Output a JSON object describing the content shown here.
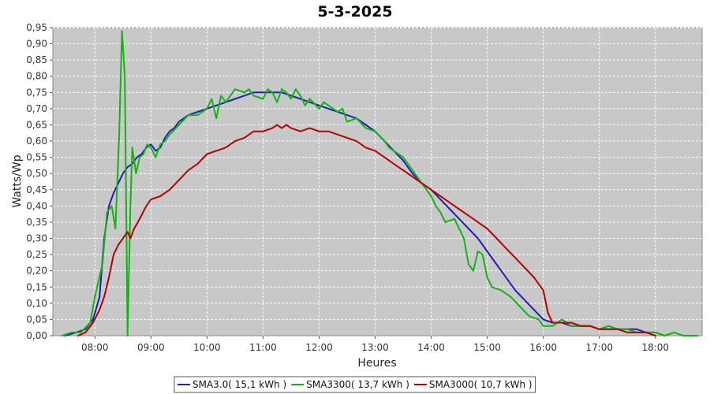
{
  "chart_data": {
    "type": "line",
    "title": "5-3-2025",
    "xlabel": "Heures",
    "ylabel": "Watts/Wp",
    "xlim": [
      "07:15",
      "18:50"
    ],
    "ylim": [
      0,
      0.95
    ],
    "x_ticks": [
      "08:00",
      "09:00",
      "10:00",
      "11:00",
      "12:00",
      "13:00",
      "14:00",
      "15:00",
      "16:00",
      "17:00",
      "18:00"
    ],
    "y_ticks": [
      "0,00",
      "0,05",
      "0,10",
      "0,15",
      "0,20",
      "0,25",
      "0,30",
      "0,35",
      "0,40",
      "0,45",
      "0,50",
      "0,55",
      "0,60",
      "0,65",
      "0,70",
      "0,75",
      "0,80",
      "0,85",
      "0,90",
      "0,95"
    ],
    "grid": true,
    "legend_position": "bottom",
    "background": "#c8c8c8",
    "series": [
      {
        "name": "SMA3.0( 15,1 kWh )",
        "color": "#1f1fb4",
        "points": [
          [
            "07:28",
            0.0
          ],
          [
            "07:40",
            0.01
          ],
          [
            "07:50",
            0.02
          ],
          [
            "07:58",
            0.05
          ],
          [
            "08:05",
            0.12
          ],
          [
            "08:10",
            0.3
          ],
          [
            "08:15",
            0.4
          ],
          [
            "08:20",
            0.44
          ],
          [
            "08:25",
            0.47
          ],
          [
            "08:30",
            0.5
          ],
          [
            "08:35",
            0.52
          ],
          [
            "08:40",
            0.53
          ],
          [
            "08:45",
            0.55
          ],
          [
            "08:50",
            0.56
          ],
          [
            "08:55",
            0.58
          ],
          [
            "09:00",
            0.59
          ],
          [
            "09:05",
            0.57
          ],
          [
            "09:10",
            0.58
          ],
          [
            "09:15",
            0.61
          ],
          [
            "09:20",
            0.63
          ],
          [
            "09:25",
            0.64
          ],
          [
            "09:30",
            0.66
          ],
          [
            "09:40",
            0.68
          ],
          [
            "09:50",
            0.69
          ],
          [
            "10:00",
            0.7
          ],
          [
            "10:10",
            0.71
          ],
          [
            "10:20",
            0.72
          ],
          [
            "10:30",
            0.73
          ],
          [
            "10:40",
            0.74
          ],
          [
            "10:50",
            0.75
          ],
          [
            "11:00",
            0.75
          ],
          [
            "11:10",
            0.75
          ],
          [
            "11:20",
            0.75
          ],
          [
            "11:30",
            0.74
          ],
          [
            "11:40",
            0.73
          ],
          [
            "11:50",
            0.72
          ],
          [
            "12:00",
            0.71
          ],
          [
            "12:10",
            0.7
          ],
          [
            "12:20",
            0.69
          ],
          [
            "12:30",
            0.68
          ],
          [
            "12:40",
            0.67
          ],
          [
            "12:50",
            0.65
          ],
          [
            "13:00",
            0.63
          ],
          [
            "13:10",
            0.6
          ],
          [
            "13:20",
            0.57
          ],
          [
            "13:30",
            0.54
          ],
          [
            "13:40",
            0.5
          ],
          [
            "13:50",
            0.47
          ],
          [
            "14:00",
            0.45
          ],
          [
            "14:10",
            0.42
          ],
          [
            "14:20",
            0.39
          ],
          [
            "14:30",
            0.36
          ],
          [
            "14:40",
            0.33
          ],
          [
            "14:50",
            0.3
          ],
          [
            "15:00",
            0.26
          ],
          [
            "15:10",
            0.22
          ],
          [
            "15:20",
            0.18
          ],
          [
            "15:30",
            0.14
          ],
          [
            "15:40",
            0.11
          ],
          [
            "15:50",
            0.08
          ],
          [
            "16:00",
            0.05
          ],
          [
            "16:10",
            0.04
          ],
          [
            "16:20",
            0.04
          ],
          [
            "16:30",
            0.03
          ],
          [
            "16:40",
            0.03
          ],
          [
            "16:50",
            0.03
          ],
          [
            "17:00",
            0.02
          ],
          [
            "17:20",
            0.02
          ],
          [
            "17:40",
            0.02
          ],
          [
            "17:50",
            0.01
          ],
          [
            "18:00",
            0.01
          ],
          [
            "18:10",
            0.0
          ]
        ]
      },
      {
        "name": "SMA3300( 13,7 kWh )",
        "color": "#12b412",
        "points": [
          [
            "07:25",
            0.0
          ],
          [
            "07:35",
            0.01
          ],
          [
            "07:45",
            0.01
          ],
          [
            "07:55",
            0.04
          ],
          [
            "08:00",
            0.12
          ],
          [
            "08:08",
            0.22
          ],
          [
            "08:13",
            0.38
          ],
          [
            "08:18",
            0.4
          ],
          [
            "08:22",
            0.33
          ],
          [
            "08:26",
            0.62
          ],
          [
            "08:29",
            0.94
          ],
          [
            "08:32",
            0.8
          ],
          [
            "08:35",
            0.0
          ],
          [
            "08:38",
            0.4
          ],
          [
            "08:40",
            0.58
          ],
          [
            "08:44",
            0.5
          ],
          [
            "08:48",
            0.55
          ],
          [
            "08:52",
            0.56
          ],
          [
            "08:56",
            0.59
          ],
          [
            "09:00",
            0.58
          ],
          [
            "09:05",
            0.55
          ],
          [
            "09:10",
            0.59
          ],
          [
            "09:15",
            0.6
          ],
          [
            "09:20",
            0.62
          ],
          [
            "09:30",
            0.65
          ],
          [
            "09:40",
            0.68
          ],
          [
            "09:50",
            0.68
          ],
          [
            "10:00",
            0.7
          ],
          [
            "10:05",
            0.73
          ],
          [
            "10:10",
            0.67
          ],
          [
            "10:15",
            0.74
          ],
          [
            "10:20",
            0.72
          ],
          [
            "10:25",
            0.74
          ],
          [
            "10:30",
            0.76
          ],
          [
            "10:40",
            0.75
          ],
          [
            "10:45",
            0.76
          ],
          [
            "10:50",
            0.74
          ],
          [
            "11:00",
            0.73
          ],
          [
            "11:05",
            0.76
          ],
          [
            "11:10",
            0.75
          ],
          [
            "11:15",
            0.72
          ],
          [
            "11:20",
            0.76
          ],
          [
            "11:25",
            0.75
          ],
          [
            "11:30",
            0.73
          ],
          [
            "11:35",
            0.76
          ],
          [
            "11:40",
            0.74
          ],
          [
            "11:45",
            0.71
          ],
          [
            "11:50",
            0.73
          ],
          [
            "12:00",
            0.7
          ],
          [
            "12:05",
            0.72
          ],
          [
            "12:10",
            0.71
          ],
          [
            "12:20",
            0.69
          ],
          [
            "12:25",
            0.7
          ],
          [
            "12:30",
            0.66
          ],
          [
            "12:40",
            0.67
          ],
          [
            "12:50",
            0.64
          ],
          [
            "13:00",
            0.63
          ],
          [
            "13:10",
            0.6
          ],
          [
            "13:15",
            0.58
          ],
          [
            "13:20",
            0.57
          ],
          [
            "13:30",
            0.55
          ],
          [
            "13:40",
            0.51
          ],
          [
            "13:45",
            0.49
          ],
          [
            "13:50",
            0.47
          ],
          [
            "14:00",
            0.43
          ],
          [
            "14:05",
            0.4
          ],
          [
            "14:10",
            0.38
          ],
          [
            "14:15",
            0.35
          ],
          [
            "14:25",
            0.36
          ],
          [
            "14:35",
            0.3
          ],
          [
            "14:40",
            0.22
          ],
          [
            "14:45",
            0.2
          ],
          [
            "14:50",
            0.26
          ],
          [
            "14:55",
            0.25
          ],
          [
            "15:00",
            0.18
          ],
          [
            "15:05",
            0.15
          ],
          [
            "15:15",
            0.14
          ],
          [
            "15:25",
            0.12
          ],
          [
            "15:35",
            0.09
          ],
          [
            "15:45",
            0.06
          ],
          [
            "15:55",
            0.05
          ],
          [
            "16:00",
            0.03
          ],
          [
            "16:10",
            0.03
          ],
          [
            "16:20",
            0.05
          ],
          [
            "16:30",
            0.03
          ],
          [
            "16:40",
            0.03
          ],
          [
            "16:50",
            0.03
          ],
          [
            "17:00",
            0.02
          ],
          [
            "17:10",
            0.03
          ],
          [
            "17:20",
            0.02
          ],
          [
            "17:30",
            0.02
          ],
          [
            "17:40",
            0.01
          ],
          [
            "17:50",
            0.01
          ],
          [
            "18:00",
            0.01
          ],
          [
            "18:10",
            0.0
          ],
          [
            "18:20",
            0.01
          ],
          [
            "18:30",
            0.0
          ],
          [
            "18:45",
            0.0
          ]
        ]
      },
      {
        "name": "SMA3000( 10,7 kWh )",
        "color": "#b40000",
        "points": [
          [
            "07:42",
            0.0
          ],
          [
            "07:50",
            0.01
          ],
          [
            "07:58",
            0.04
          ],
          [
            "08:05",
            0.08
          ],
          [
            "08:10",
            0.12
          ],
          [
            "08:15",
            0.18
          ],
          [
            "08:20",
            0.25
          ],
          [
            "08:25",
            0.28
          ],
          [
            "08:30",
            0.3
          ],
          [
            "08:35",
            0.32
          ],
          [
            "08:38",
            0.3
          ],
          [
            "08:42",
            0.33
          ],
          [
            "08:48",
            0.36
          ],
          [
            "08:55",
            0.4
          ],
          [
            "09:00",
            0.42
          ],
          [
            "09:10",
            0.43
          ],
          [
            "09:20",
            0.45
          ],
          [
            "09:30",
            0.48
          ],
          [
            "09:40",
            0.51
          ],
          [
            "09:50",
            0.53
          ],
          [
            "10:00",
            0.56
          ],
          [
            "10:10",
            0.57
          ],
          [
            "10:20",
            0.58
          ],
          [
            "10:30",
            0.6
          ],
          [
            "10:40",
            0.61
          ],
          [
            "10:50",
            0.63
          ],
          [
            "11:00",
            0.63
          ],
          [
            "11:10",
            0.64
          ],
          [
            "11:15",
            0.65
          ],
          [
            "11:20",
            0.64
          ],
          [
            "11:25",
            0.65
          ],
          [
            "11:30",
            0.64
          ],
          [
            "11:40",
            0.63
          ],
          [
            "11:50",
            0.64
          ],
          [
            "12:00",
            0.63
          ],
          [
            "12:10",
            0.63
          ],
          [
            "12:20",
            0.62
          ],
          [
            "12:30",
            0.61
          ],
          [
            "12:40",
            0.6
          ],
          [
            "12:50",
            0.58
          ],
          [
            "13:00",
            0.57
          ],
          [
            "13:10",
            0.55
          ],
          [
            "13:20",
            0.53
          ],
          [
            "13:30",
            0.51
          ],
          [
            "13:40",
            0.49
          ],
          [
            "13:50",
            0.47
          ],
          [
            "14:00",
            0.45
          ],
          [
            "14:10",
            0.43
          ],
          [
            "14:20",
            0.41
          ],
          [
            "14:30",
            0.39
          ],
          [
            "14:40",
            0.37
          ],
          [
            "14:50",
            0.35
          ],
          [
            "15:00",
            0.33
          ],
          [
            "15:10",
            0.3
          ],
          [
            "15:20",
            0.27
          ],
          [
            "15:30",
            0.24
          ],
          [
            "15:40",
            0.21
          ],
          [
            "15:50",
            0.18
          ],
          [
            "16:00",
            0.14
          ],
          [
            "16:05",
            0.07
          ],
          [
            "16:10",
            0.04
          ],
          [
            "16:20",
            0.04
          ],
          [
            "16:30",
            0.04
          ],
          [
            "16:40",
            0.03
          ],
          [
            "16:50",
            0.03
          ],
          [
            "17:00",
            0.02
          ],
          [
            "17:10",
            0.02
          ],
          [
            "17:20",
            0.02
          ],
          [
            "17:30",
            0.01
          ],
          [
            "17:40",
            0.01
          ],
          [
            "17:50",
            0.01
          ],
          [
            "18:00",
            0.0
          ]
        ]
      }
    ]
  }
}
